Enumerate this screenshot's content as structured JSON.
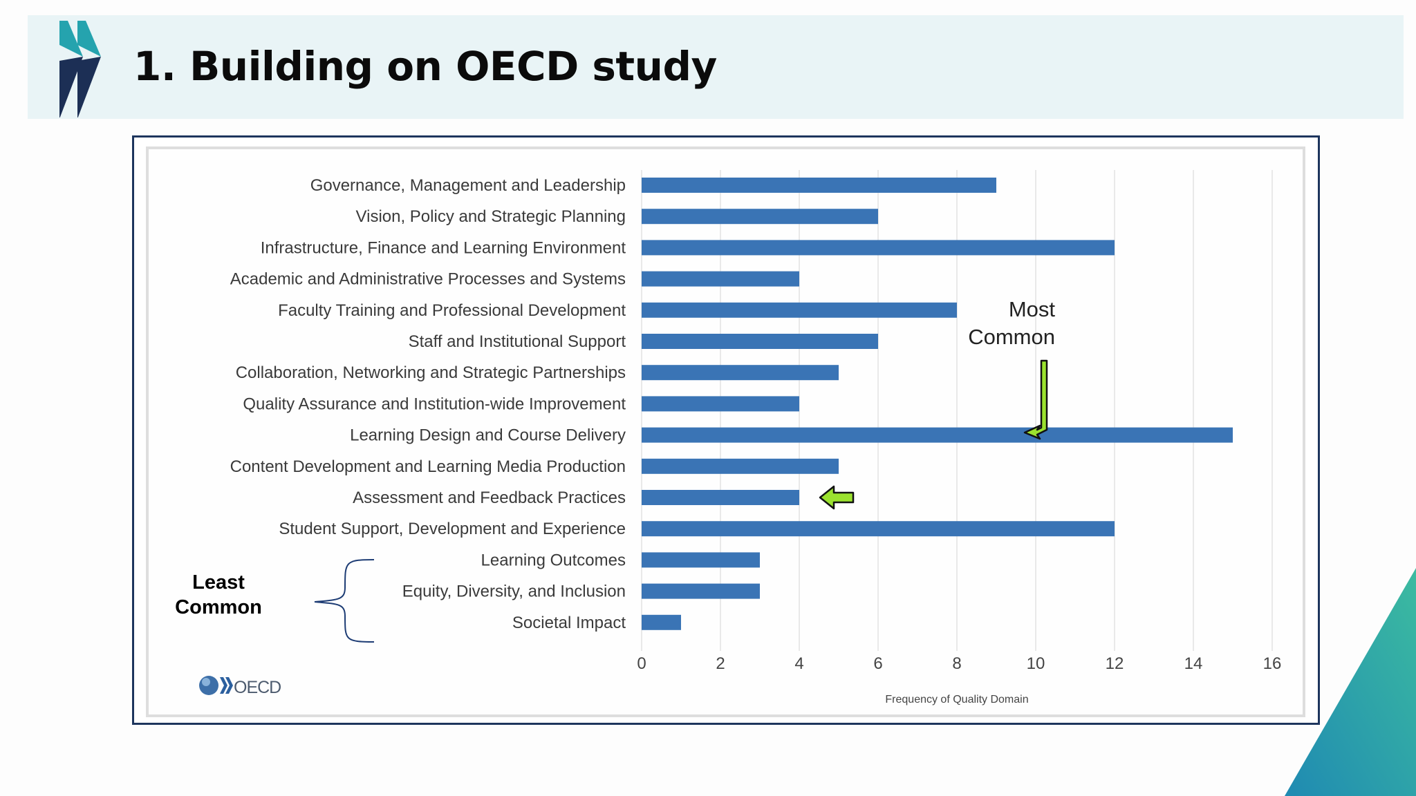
{
  "header": {
    "title": "1. Building on OECD study"
  },
  "logo": {
    "text": "OECD"
  },
  "annotations": {
    "most_common": [
      "Most",
      "Common"
    ],
    "least_common": [
      "Least",
      "Common"
    ]
  },
  "colors": {
    "bar": "#3a74b5",
    "header_bg": "#e9f4f6",
    "frame": "#1d355d",
    "arrow_fill": "#9be22f",
    "chevron_teal": "#25a3ae",
    "chevron_navy": "#1c2f55"
  },
  "chart_data": {
    "type": "bar",
    "orientation": "horizontal",
    "categories": [
      "Governance, Management and Leadership",
      "Vision, Policy and Strategic Planning",
      "Infrastructure, Finance and Learning Environment",
      "Academic and Administrative Processes and Systems",
      "Faculty Training and Professional Development",
      "Staff and Institutional Support",
      "Collaboration, Networking and Strategic Partnerships",
      "Quality Assurance and Institution-wide Improvement",
      "Learning Design and Course Delivery",
      "Content Development and Learning Media Production",
      "Assessment and Feedback Practices",
      "Student Support, Development and Experience",
      "Learning Outcomes",
      "Equity, Diversity, and Inclusion",
      "Societal Impact"
    ],
    "values": [
      9,
      6,
      12,
      4,
      8,
      6,
      5,
      4,
      15,
      5,
      4,
      12,
      3,
      3,
      1
    ],
    "xlabel": "Frequency of Quality Domain",
    "ylabel": "",
    "xlim": [
      0,
      16
    ],
    "xticks": [
      "0",
      "2",
      "4",
      "6",
      "8",
      "10",
      "12",
      "14",
      "16"
    ],
    "grid": "vertical",
    "highlighted_category": "Assessment and Feedback Practices"
  }
}
